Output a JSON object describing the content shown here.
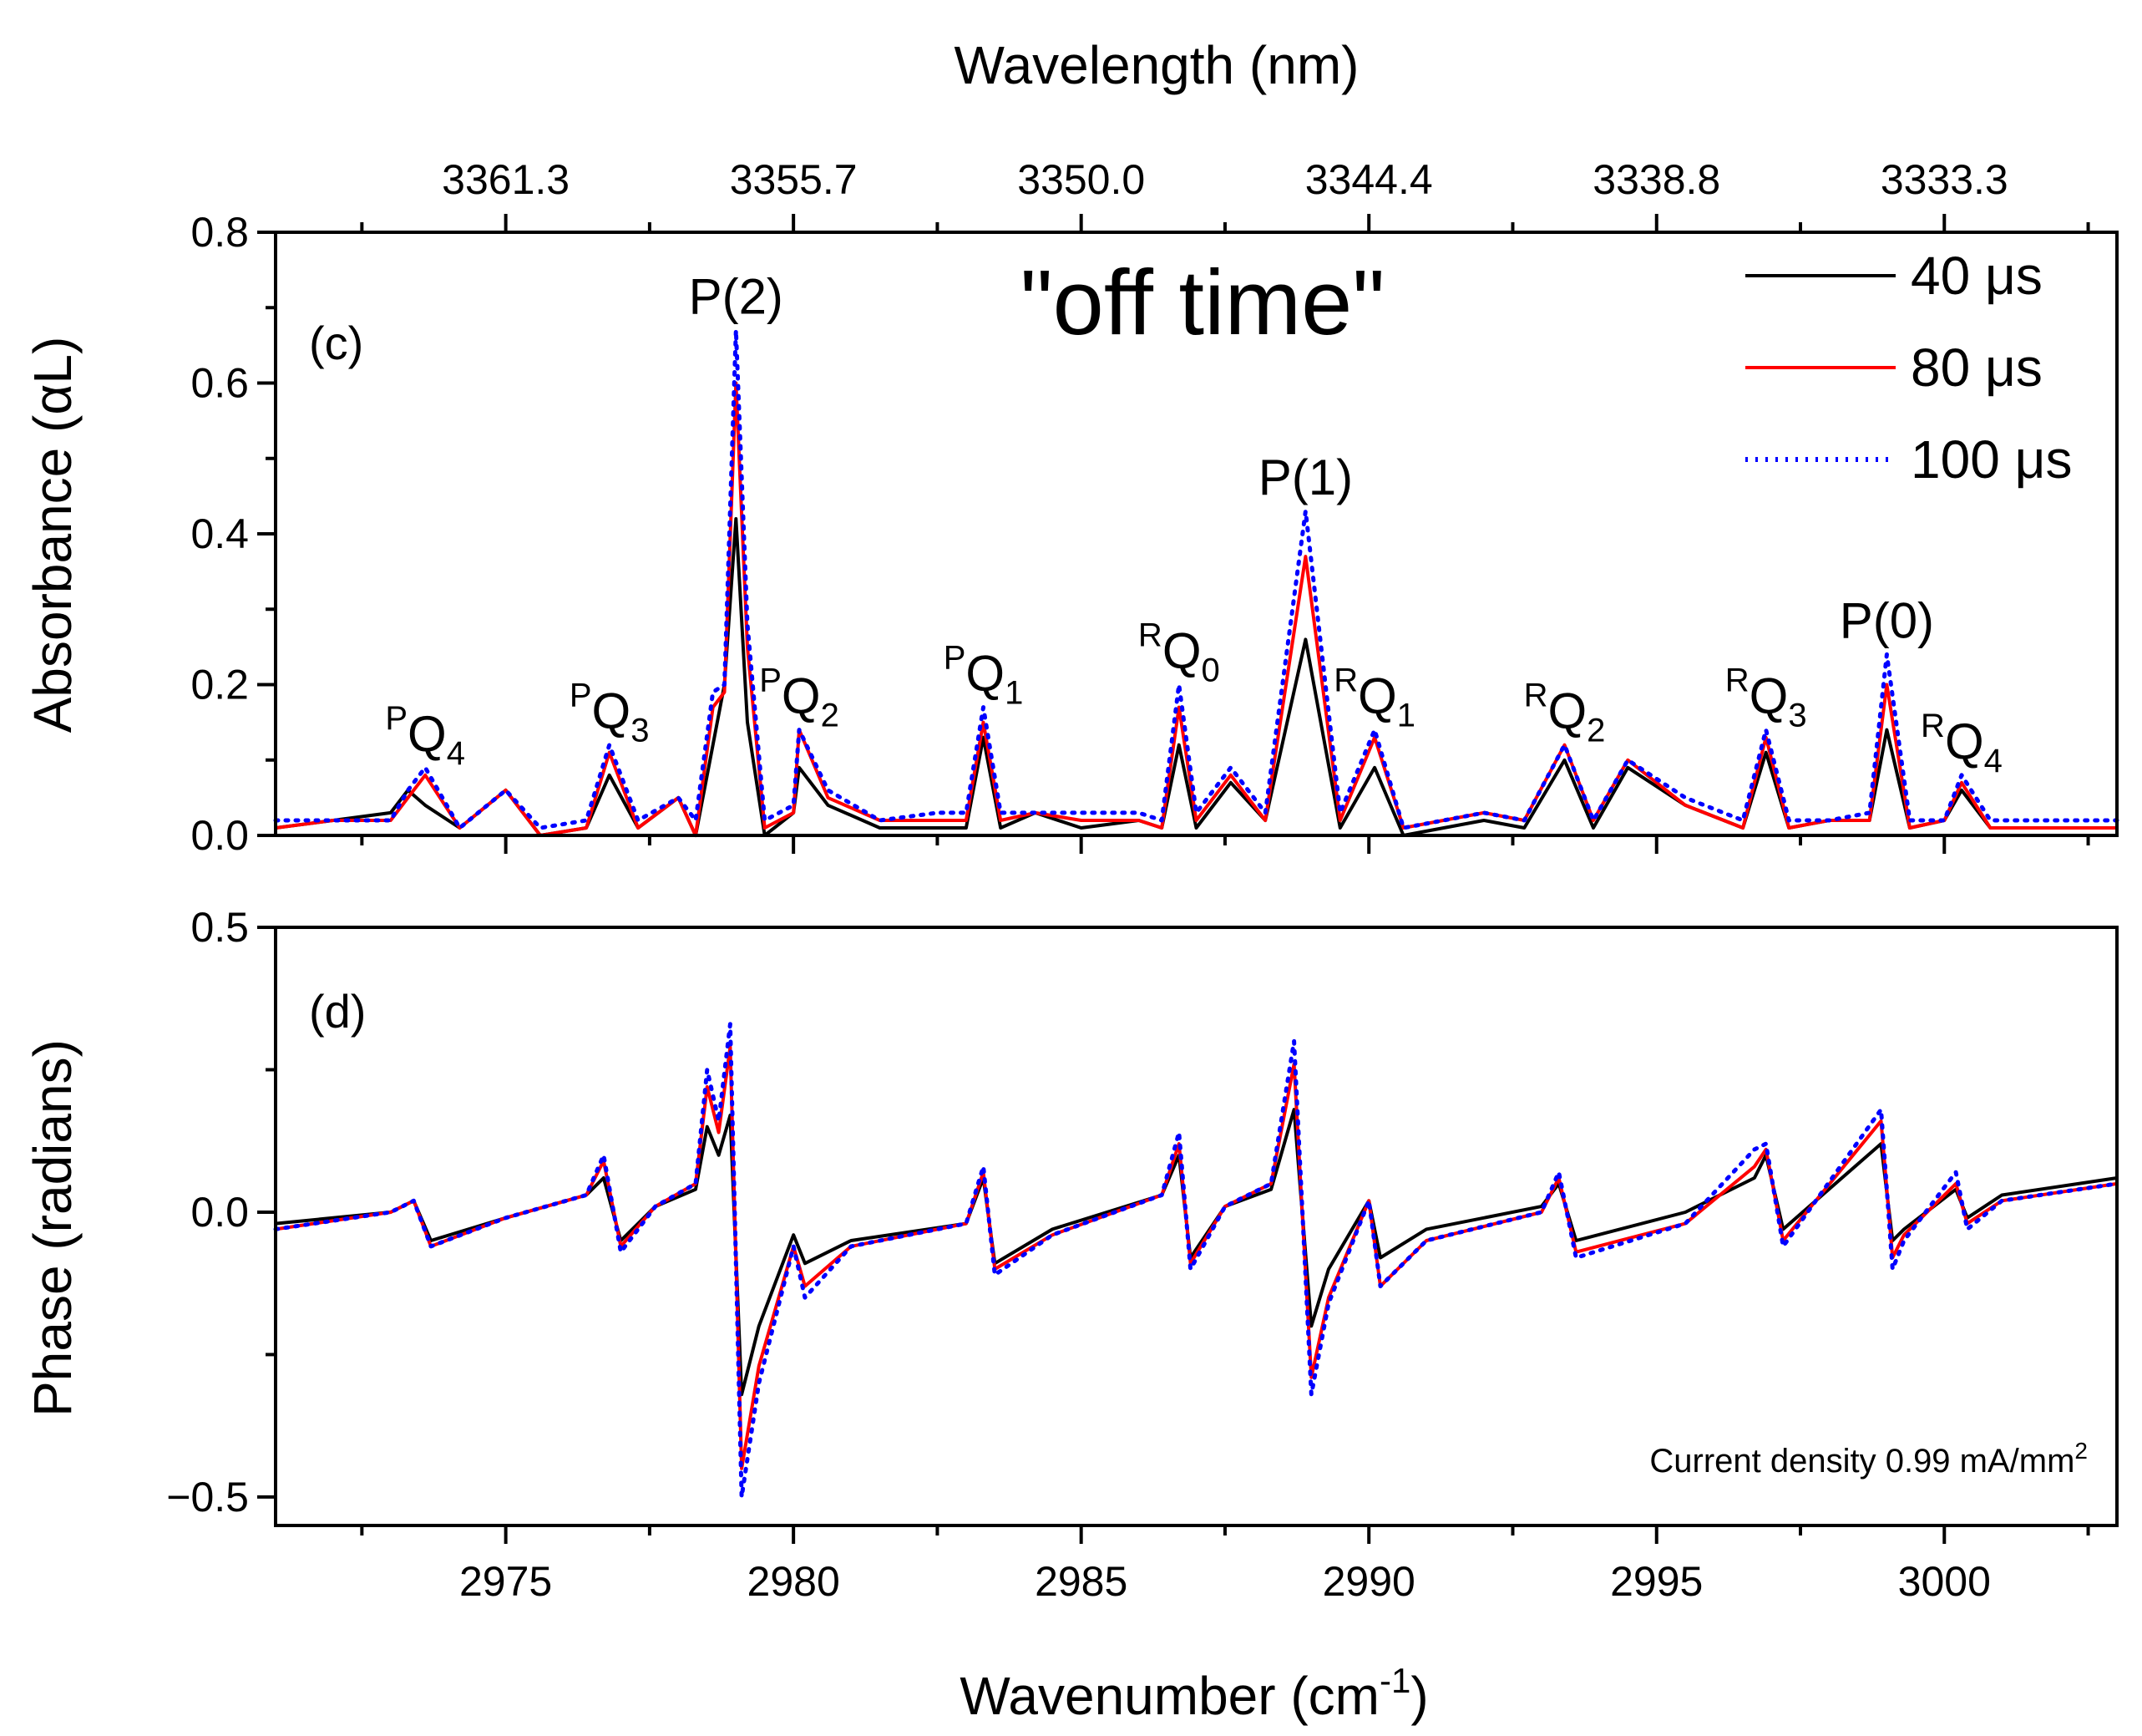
{
  "chart_data": [
    {
      "type": "line",
      "panel_label": "(c)",
      "title": "\"off time\"",
      "ylabel": "Absorbance (αL)",
      "top_xlabel": "Wavelength (nm)",
      "top_xticks": [
        {
          "label": "3361.3",
          "wavenumber": 2975.0
        },
        {
          "label": "3355.7",
          "wavenumber": 2980.0
        },
        {
          "label": "3350.0",
          "wavenumber": 2985.0
        },
        {
          "label": "3344.4",
          "wavenumber": 2990.0
        },
        {
          "label": "3338.8",
          "wavenumber": 2995.0
        },
        {
          "label": "3333.3",
          "wavenumber": 3000.0
        }
      ],
      "xlim": [
        2971,
        3003
      ],
      "ylim": [
        0,
        0.8
      ],
      "yticks": [
        0.0,
        0.2,
        0.4,
        0.6,
        0.8
      ],
      "ytick_labels": [
        "0.0",
        "0.2",
        "0.4",
        "0.6",
        "0.8"
      ],
      "legend": {
        "placement": "top-right",
        "entries": [
          {
            "label": "40 μs",
            "color": "#000000",
            "style": "solid"
          },
          {
            "label": "80 μs",
            "color": "#ff0000",
            "style": "solid"
          },
          {
            "label": "100 μs",
            "color": "#0000ff",
            "style": "dotted"
          }
        ]
      },
      "peak_labels": [
        {
          "sup": "P",
          "main": "Q",
          "sub": "4",
          "x": 2973.6,
          "y": 0.09
        },
        {
          "sup": "P",
          "main": "Q",
          "sub": "3",
          "x": 2976.8,
          "y": 0.12
        },
        {
          "sup": "",
          "main": "P(2)",
          "sub": "",
          "x": 2979.0,
          "y": 0.67
        },
        {
          "sup": "P",
          "main": "Q",
          "sub": "2",
          "x": 2980.1,
          "y": 0.14
        },
        {
          "sup": "P",
          "main": "Q",
          "sub": "1",
          "x": 2983.3,
          "y": 0.17
        },
        {
          "sup": "R",
          "main": "Q",
          "sub": "0",
          "x": 2986.7,
          "y": 0.2
        },
        {
          "sup": "",
          "main": "P(1)",
          "sub": "",
          "x": 2988.9,
          "y": 0.43
        },
        {
          "sup": "R",
          "main": "Q",
          "sub": "1",
          "x": 2990.1,
          "y": 0.14
        },
        {
          "sup": "R",
          "main": "Q",
          "sub": "2",
          "x": 2993.4,
          "y": 0.12
        },
        {
          "sup": "R",
          "main": "Q",
          "sub": "3",
          "x": 2996.9,
          "y": 0.14
        },
        {
          "sup": "",
          "main": "P(0)",
          "sub": "",
          "x": 2999.0,
          "y": 0.24
        },
        {
          "sup": "R",
          "main": "Q",
          "sub": "4",
          "x": 3000.3,
          "y": 0.08
        }
      ],
      "series": [
        {
          "name": "40 μs",
          "color": "#000000",
          "dash": "",
          "x": [
            2971.0,
            2972.0,
            2973.0,
            2973.3,
            2973.6,
            2974.2,
            2975.0,
            2975.6,
            2976.4,
            2976.8,
            2977.3,
            2978.0,
            2978.3,
            2978.6,
            2978.8,
            2979.0,
            2979.2,
            2979.5,
            2980.0,
            2980.1,
            2980.6,
            2981.5,
            2982.5,
            2983.0,
            2983.3,
            2983.6,
            2984.2,
            2985.0,
            2986.0,
            2986.4,
            2986.7,
            2987.0,
            2987.6,
            2988.2,
            2988.9,
            2989.5,
            2990.1,
            2990.6,
            2992.0,
            2992.7,
            2993.4,
            2993.9,
            2994.5,
            2995.5,
            2996.5,
            2996.9,
            2997.3,
            2998.0,
            2998.7,
            2999.0,
            2999.4,
            3000.0,
            3000.3,
            3000.8,
            3002.0,
            3003.0
          ],
          "y": [
            0.01,
            0.02,
            0.03,
            0.06,
            0.04,
            0.01,
            0.06,
            0.0,
            0.01,
            0.08,
            0.01,
            0.05,
            0.0,
            0.12,
            0.2,
            0.42,
            0.15,
            0.0,
            0.03,
            0.09,
            0.04,
            0.01,
            0.01,
            0.01,
            0.13,
            0.01,
            0.03,
            0.01,
            0.02,
            0.01,
            0.12,
            0.01,
            0.07,
            0.02,
            0.26,
            0.01,
            0.09,
            0.0,
            0.02,
            0.01,
            0.1,
            0.01,
            0.09,
            0.04,
            0.01,
            0.11,
            0.01,
            0.02,
            0.02,
            0.14,
            0.01,
            0.02,
            0.06,
            0.01,
            0.01,
            0.01
          ]
        },
        {
          "name": "80 μs",
          "color": "#ff0000",
          "dash": "",
          "x": [
            2971.0,
            2972.0,
            2973.0,
            2973.3,
            2973.6,
            2974.2,
            2975.0,
            2975.6,
            2976.4,
            2976.8,
            2977.3,
            2978.0,
            2978.3,
            2978.6,
            2978.8,
            2979.0,
            2979.2,
            2979.5,
            2980.0,
            2980.1,
            2980.6,
            2981.5,
            2982.5,
            2983.0,
            2983.3,
            2983.6,
            2984.2,
            2985.0,
            2986.0,
            2986.4,
            2986.7,
            2987.0,
            2987.6,
            2988.2,
            2988.9,
            2989.5,
            2990.1,
            2990.6,
            2992.0,
            2992.7,
            2993.4,
            2993.9,
            2994.5,
            2995.5,
            2996.5,
            2996.9,
            2997.3,
            2998.0,
            2998.7,
            2999.0,
            2999.4,
            3000.0,
            3000.3,
            3000.8,
            3002.0,
            3003.0
          ],
          "y": [
            0.01,
            0.02,
            0.02,
            0.05,
            0.08,
            0.01,
            0.06,
            0.0,
            0.01,
            0.11,
            0.01,
            0.05,
            0.0,
            0.17,
            0.19,
            0.6,
            0.25,
            0.01,
            0.03,
            0.14,
            0.05,
            0.02,
            0.02,
            0.02,
            0.15,
            0.02,
            0.03,
            0.02,
            0.02,
            0.01,
            0.17,
            0.02,
            0.08,
            0.02,
            0.37,
            0.02,
            0.13,
            0.01,
            0.03,
            0.02,
            0.12,
            0.02,
            0.1,
            0.04,
            0.01,
            0.13,
            0.01,
            0.02,
            0.02,
            0.2,
            0.01,
            0.02,
            0.07,
            0.01,
            0.01,
            0.01
          ]
        },
        {
          "name": "100 μs",
          "color": "#0000ff",
          "dash": "3 9",
          "x": [
            2971.0,
            2972.0,
            2973.0,
            2973.3,
            2973.6,
            2974.2,
            2975.0,
            2975.6,
            2976.4,
            2976.8,
            2977.3,
            2978.0,
            2978.3,
            2978.6,
            2978.8,
            2979.0,
            2979.2,
            2979.5,
            2980.0,
            2980.1,
            2980.6,
            2981.5,
            2982.5,
            2983.0,
            2983.3,
            2983.6,
            2984.2,
            2985.0,
            2986.0,
            2986.4,
            2986.7,
            2987.0,
            2987.6,
            2988.2,
            2988.9,
            2989.5,
            2990.1,
            2990.6,
            2992.0,
            2992.7,
            2993.4,
            2993.9,
            2994.5,
            2995.5,
            2996.5,
            2996.9,
            2997.3,
            2998.0,
            2998.7,
            2999.0,
            2999.4,
            3000.0,
            3000.3,
            3000.8,
            3002.0,
            3003.0
          ],
          "y": [
            0.02,
            0.02,
            0.02,
            0.06,
            0.09,
            0.01,
            0.06,
            0.01,
            0.02,
            0.12,
            0.02,
            0.05,
            0.02,
            0.19,
            0.2,
            0.67,
            0.28,
            0.02,
            0.04,
            0.14,
            0.06,
            0.02,
            0.03,
            0.03,
            0.17,
            0.03,
            0.03,
            0.03,
            0.03,
            0.02,
            0.2,
            0.03,
            0.09,
            0.03,
            0.43,
            0.03,
            0.14,
            0.01,
            0.03,
            0.02,
            0.12,
            0.02,
            0.1,
            0.05,
            0.02,
            0.14,
            0.02,
            0.02,
            0.03,
            0.24,
            0.02,
            0.02,
            0.08,
            0.02,
            0.02,
            0.02
          ]
        }
      ]
    },
    {
      "type": "line",
      "panel_label": "(d)",
      "xlabel": "Wavenumber (cm",
      "xlabel_sup": "-1",
      "xlabel_end": ")",
      "ylabel": "Phase (radians)",
      "xlim": [
        2971,
        3003
      ],
      "ylim": [
        -0.55,
        0.5
      ],
      "xticks": [
        2975,
        2980,
        2985,
        2990,
        2995,
        3000
      ],
      "xtick_labels": [
        "2975",
        "2980",
        "2985",
        "2990",
        "2995",
        "3000"
      ],
      "yticks": [
        -0.5,
        0.0,
        0.5
      ],
      "ytick_labels": [
        "−0.5",
        "0.0",
        "0.5"
      ],
      "annotation": "Current density 0.99 mA/mm",
      "annotation_sup": "2",
      "series": [
        {
          "name": "40 μs",
          "color": "#000000",
          "dash": "",
          "x": [
            2971.0,
            2973.0,
            2973.4,
            2973.7,
            2975.0,
            2976.4,
            2976.7,
            2977.0,
            2977.6,
            2978.3,
            2978.5,
            2978.7,
            2978.9,
            2979.1,
            2979.4,
            2980.0,
            2980.2,
            2981.0,
            2983.0,
            2983.3,
            2983.5,
            2984.5,
            2986.4,
            2986.7,
            2986.9,
            2987.5,
            2988.3,
            2988.7,
            2989.0,
            2989.3,
            2990.0,
            2990.2,
            2991.0,
            2993.0,
            2993.3,
            2993.6,
            2995.5,
            2996.7,
            2996.9,
            2997.2,
            2998.9,
            2999.1,
            2999.3,
            3000.2,
            3000.4,
            3001.0,
            3003.0
          ],
          "y": [
            -0.02,
            0.0,
            0.02,
            -0.05,
            -0.01,
            0.03,
            0.06,
            -0.05,
            0.01,
            0.04,
            0.15,
            0.1,
            0.17,
            -0.32,
            -0.2,
            -0.04,
            -0.09,
            -0.05,
            -0.02,
            0.06,
            -0.09,
            -0.03,
            0.03,
            0.1,
            -0.08,
            0.01,
            0.04,
            0.18,
            -0.2,
            -0.1,
            0.02,
            -0.08,
            -0.03,
            0.01,
            0.05,
            -0.05,
            0.0,
            0.06,
            0.1,
            -0.03,
            0.12,
            -0.05,
            -0.03,
            0.04,
            -0.01,
            0.03,
            0.06
          ]
        },
        {
          "name": "80 μs",
          "color": "#ff0000",
          "dash": "",
          "x": [
            2971.0,
            2973.0,
            2973.4,
            2973.7,
            2975.0,
            2976.4,
            2976.7,
            2977.0,
            2977.6,
            2978.3,
            2978.5,
            2978.7,
            2978.9,
            2979.1,
            2979.4,
            2980.0,
            2980.2,
            2981.0,
            2983.0,
            2983.3,
            2983.5,
            2984.5,
            2986.4,
            2986.7,
            2986.9,
            2987.5,
            2988.3,
            2988.7,
            2989.0,
            2989.3,
            2990.0,
            2990.2,
            2991.0,
            2993.0,
            2993.3,
            2993.6,
            2995.5,
            2996.7,
            2996.9,
            2997.2,
            2998.9,
            2999.1,
            2999.3,
            3000.2,
            3000.4,
            3001.0,
            3003.0
          ],
          "y": [
            -0.03,
            0.0,
            0.02,
            -0.06,
            -0.01,
            0.03,
            0.09,
            -0.06,
            0.01,
            0.05,
            0.22,
            0.14,
            0.29,
            -0.45,
            -0.27,
            -0.06,
            -0.13,
            -0.06,
            -0.02,
            0.07,
            -0.1,
            -0.04,
            0.03,
            0.12,
            -0.09,
            0.01,
            0.05,
            0.26,
            -0.29,
            -0.15,
            0.02,
            -0.13,
            -0.05,
            0.0,
            0.06,
            -0.07,
            -0.02,
            0.08,
            0.11,
            -0.05,
            0.16,
            -0.08,
            -0.04,
            0.05,
            -0.02,
            0.02,
            0.05
          ]
        },
        {
          "name": "100 μs",
          "color": "#0000ff",
          "dash": "3 9",
          "x": [
            2971.0,
            2973.0,
            2973.4,
            2973.7,
            2975.0,
            2976.4,
            2976.7,
            2977.0,
            2977.6,
            2978.3,
            2978.5,
            2978.7,
            2978.9,
            2979.1,
            2979.4,
            2980.0,
            2980.2,
            2981.0,
            2983.0,
            2983.3,
            2983.5,
            2984.5,
            2986.4,
            2986.7,
            2986.9,
            2987.5,
            2988.3,
            2988.7,
            2989.0,
            2989.3,
            2990.0,
            2990.2,
            2991.0,
            2993.0,
            2993.3,
            2993.6,
            2995.5,
            2996.7,
            2996.9,
            2997.2,
            2998.9,
            2999.1,
            2999.3,
            3000.2,
            3000.4,
            3001.0,
            3003.0
          ],
          "y": [
            -0.03,
            0.0,
            0.02,
            -0.06,
            -0.01,
            0.03,
            0.1,
            -0.07,
            0.01,
            0.05,
            0.25,
            0.16,
            0.33,
            -0.5,
            -0.3,
            -0.06,
            -0.15,
            -0.06,
            -0.02,
            0.08,
            -0.11,
            -0.04,
            0.03,
            0.14,
            -0.1,
            0.01,
            0.05,
            0.3,
            -0.32,
            -0.16,
            0.02,
            -0.13,
            -0.05,
            0.0,
            0.07,
            -0.08,
            -0.02,
            0.11,
            0.12,
            -0.06,
            0.18,
            -0.1,
            -0.05,
            0.07,
            -0.03,
            0.02,
            0.05
          ]
        }
      ]
    }
  ]
}
